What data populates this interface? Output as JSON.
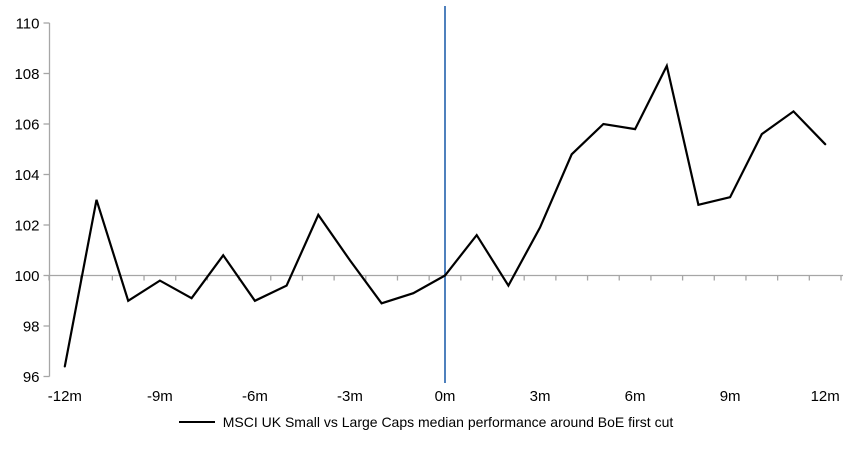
{
  "legend": {
    "label": "MSCI UK Small vs Large Caps median performance around BoE first cut"
  },
  "chart_data": {
    "type": "line",
    "title": "",
    "xlabel": "",
    "ylabel": "",
    "x": [
      -12,
      -11,
      -10,
      -9,
      -8,
      -7,
      -6,
      -5,
      -4,
      -3,
      -2,
      -1,
      0,
      1,
      2,
      3,
      4,
      5,
      6,
      7,
      8,
      9,
      10,
      11,
      12
    ],
    "series": [
      {
        "name": "MSCI UK Small vs Large Caps median performance around BoE first cut",
        "values": [
          96.4,
          103.0,
          99.0,
          99.8,
          99.1,
          100.8,
          99.0,
          99.6,
          102.4,
          100.6,
          98.9,
          99.3,
          100.0,
          101.6,
          99.6,
          101.9,
          104.8,
          106.0,
          105.8,
          108.3,
          102.8,
          103.1,
          105.6,
          106.5,
          105.2
        ]
      }
    ],
    "xticks": [
      {
        "m": -12,
        "label": "-12m"
      },
      {
        "m": -9,
        "label": "-9m"
      },
      {
        "m": -6,
        "label": "-6m"
      },
      {
        "m": -3,
        "label": "-3m"
      },
      {
        "m": 0,
        "label": "0m"
      },
      {
        "m": 3,
        "label": "3m"
      },
      {
        "m": 6,
        "label": "6m"
      },
      {
        "m": 9,
        "label": "9m"
      },
      {
        "m": 12,
        "label": "12m"
      }
    ],
    "yticks": [
      96,
      98,
      100,
      102,
      104,
      106,
      108,
      110
    ],
    "ylim": [
      96,
      110
    ],
    "xlim": [
      -12.5,
      12.5
    ],
    "baseline_value": 100,
    "event_line_x": 0,
    "grid": "baseline-only",
    "legend_position": "bottom",
    "colors": {
      "series_line": "#000000",
      "event_line": "#4F81BD",
      "axis_line": "#A6A6A6",
      "tick_label_text": "#000000"
    }
  }
}
